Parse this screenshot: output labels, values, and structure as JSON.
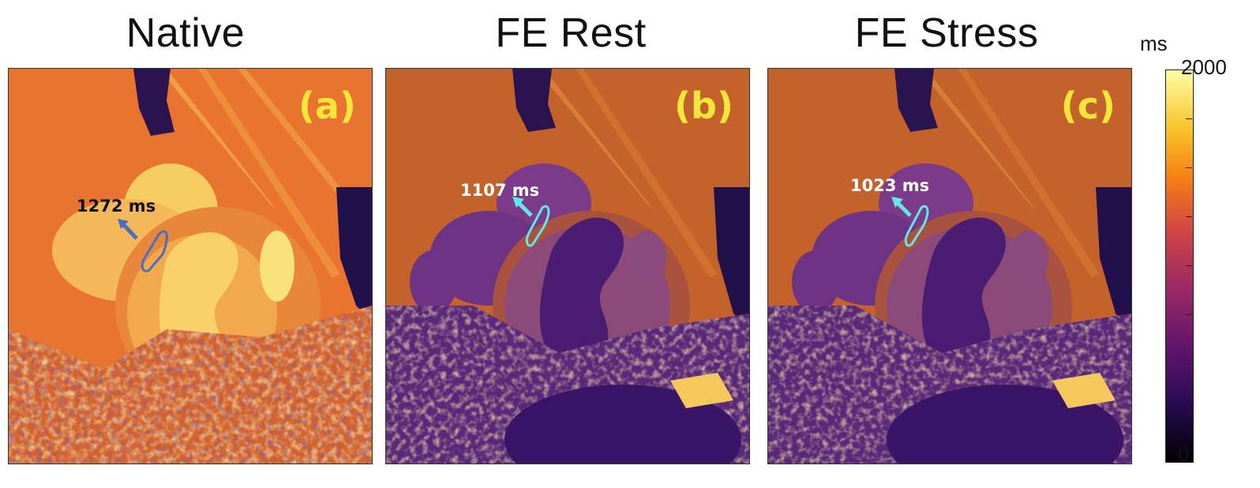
{
  "panels": [
    {
      "title": "Native",
      "label": "(a)",
      "measurement": "1272 ms",
      "label_color": "#111111",
      "arrow_color": "#4a6fc0",
      "roi_color": "#4a6fc0",
      "base": "#e8742f"
    },
    {
      "title": "FE Rest",
      "label": "(b)",
      "measurement": "1107 ms",
      "label_color": "#ffffff",
      "arrow_color": "#62e6e6",
      "roi_color": "#62e6e6",
      "base": "#c4622c"
    },
    {
      "title": "FE Stress",
      "label": "(c)",
      "measurement": "1023 ms",
      "label_color": "#ffffff",
      "arrow_color": "#62e6e6",
      "roi_color": "#62e6e6",
      "base": "#c4622c"
    }
  ],
  "colorbar": {
    "unit": "ms",
    "max_label": "2000",
    "min_label": "0",
    "colormap": "inferno"
  },
  "colors": {
    "panel_label": "#f5e63c"
  }
}
